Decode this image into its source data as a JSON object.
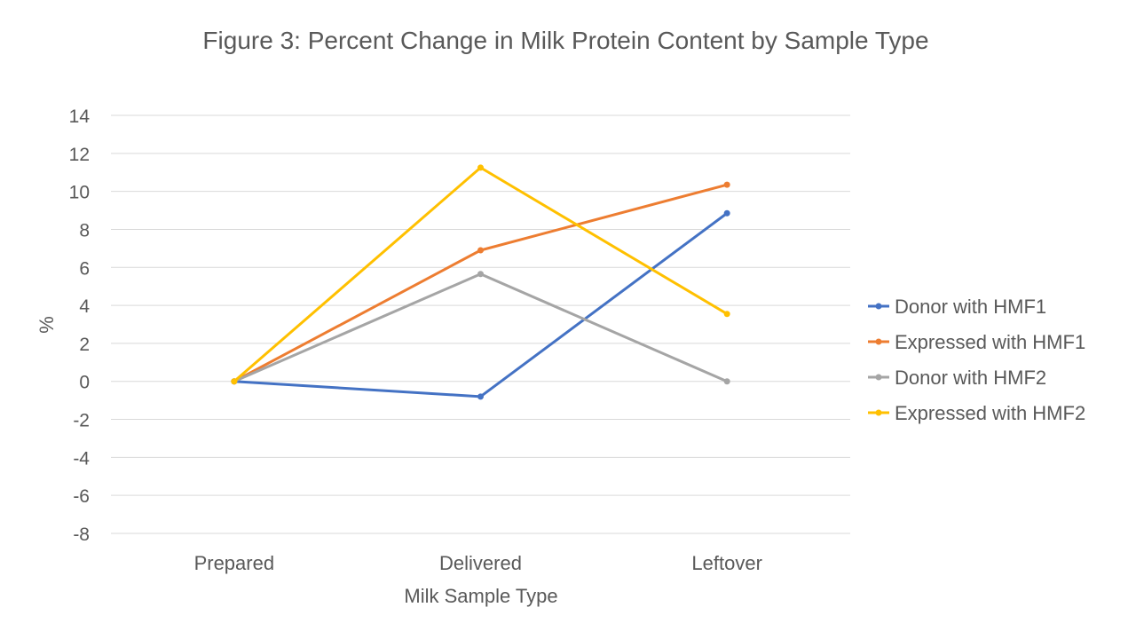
{
  "chart_data": {
    "type": "line",
    "title": "Figure 3: Percent Change in Milk Protein Content by Sample Type",
    "xlabel": "Milk Sample Type",
    "ylabel": "%",
    "categories": [
      "Prepared",
      "Delivered",
      "Leftover"
    ],
    "ylim": [
      -8,
      14
    ],
    "yticks": [
      -8,
      -6,
      -4,
      -2,
      0,
      2,
      4,
      6,
      8,
      10,
      12,
      14
    ],
    "grid": true,
    "legend_position": "right",
    "series": [
      {
        "name": "Donor with HMF1",
        "color": "#4472C4",
        "values": [
          0,
          -0.8,
          8.85
        ]
      },
      {
        "name": "Expressed with HMF1",
        "color": "#ED7D31",
        "values": [
          0,
          6.9,
          10.35
        ]
      },
      {
        "name": "Donor with HMF2",
        "color": "#A5A5A5",
        "values": [
          0,
          5.65,
          0
        ]
      },
      {
        "name": "Expressed with HMF2",
        "color": "#FFC000",
        "values": [
          0,
          11.25,
          3.55
        ]
      }
    ]
  }
}
